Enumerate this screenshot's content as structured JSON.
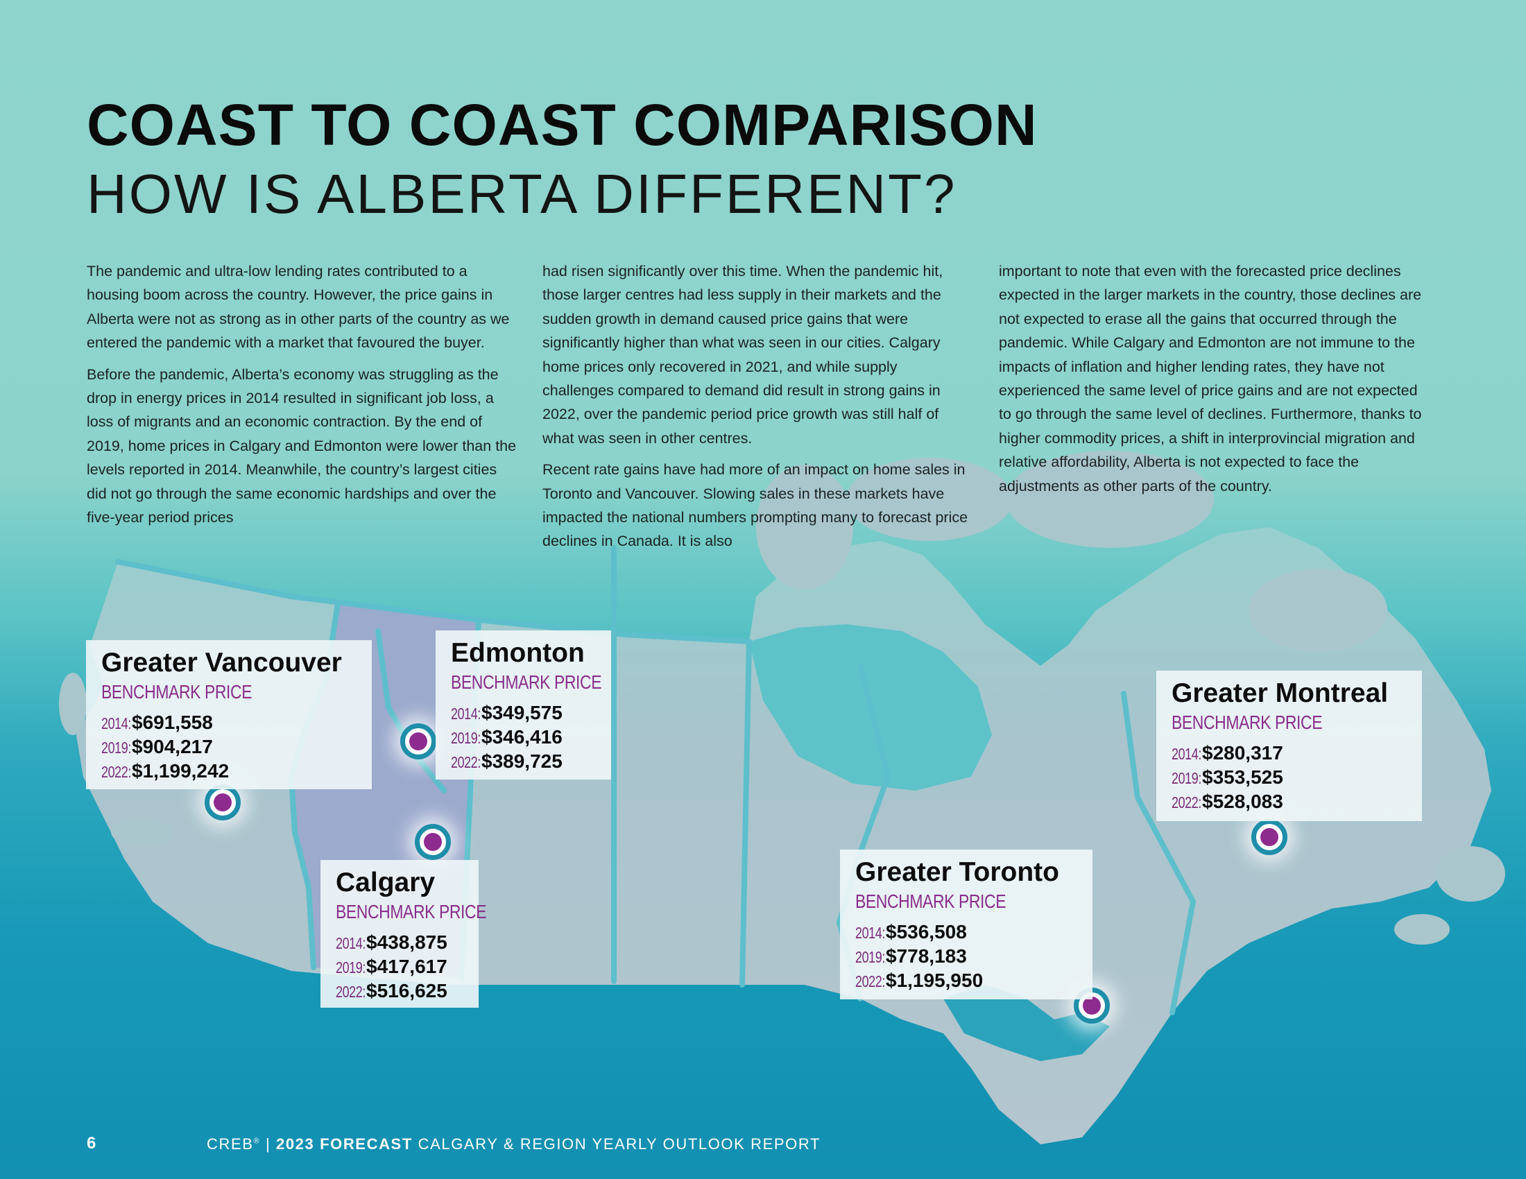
{
  "header": {
    "title": "COAST TO COAST COMPARISON",
    "subtitle": "HOW IS ALBERTA DIFFERENT?"
  },
  "body": {
    "col1_p1": "The pandemic and ultra-low lending rates contributed to a housing boom across the country. However, the price gains in Alberta were not as strong as in other parts of the country as we entered the pandemic with a market that favoured the buyer.",
    "col1_p2": "Before the pandemic, Alberta’s economy was struggling as the drop in energy prices in 2014 resulted in significant job loss, a loss of migrants and an economic contraction. By the end of 2019, home prices in Calgary and Edmonton were lower than the levels reported in 2014. Meanwhile, the country’s largest cities did not go through the same economic hardships and over the five-year period prices",
    "col2_p1": "had risen significantly over this time. When the pandemic hit, those larger centres had less supply in their markets and the sudden growth in demand caused price gains that were significantly higher than what was seen in our cities. Calgary home prices only recovered in 2021, and while supply challenges compared to demand did result in strong gains in 2022, over the pandemic period price growth was still half of what was seen in other centres.",
    "col2_p2": "Recent rate gains have had more of an impact on home sales in Toronto and Vancouver.  Slowing sales in these markets have impacted the national numbers prompting many to forecast price declines in Canada. It is also",
    "col3_p1": "important to note that even with the forecasted price declines expected in the larger markets in the country, those declines are not expected to erase all the gains that occurred through the pandemic. While Calgary and Edmonton are not immune to the impacts of inflation and higher lending rates, they have not experienced the same level of price gains and are not expected to go through the same level of declines. Furthermore, thanks to higher commodity prices, a shift in interprovincial migration and relative affordability, Alberta is not expected to face the adjustments as other parts of the country."
  },
  "benchmark_label": "BENCHMARK PRICE",
  "cities": {
    "vancouver": {
      "name": "Greater Vancouver",
      "y2014": "2014:",
      "p2014": "$691,558",
      "y2019": "2019:",
      "p2019": "$904,217",
      "y2022": "2022:",
      "p2022": "$1,199,242"
    },
    "edmonton": {
      "name": "Edmonton",
      "y2014": "2014:",
      "p2014": "$349,575",
      "y2019": "2019:",
      "p2019": "$346,416",
      "y2022": "2022:",
      "p2022": "$389,725"
    },
    "calgary": {
      "name": "Calgary",
      "y2014": "2014:",
      "p2014": "$438,875",
      "y2019": "2019:",
      "p2019": "$417,617",
      "y2022": "2022:",
      "p2022": "$516,625"
    },
    "toronto": {
      "name": "Greater Toronto",
      "y2014": "2014:",
      "p2014": "$536,508",
      "y2019": "2019:",
      "p2019": "$778,183",
      "y2022": "2022:",
      "p2022": "$1,195,950"
    },
    "montreal": {
      "name": "Greater Montreal",
      "y2014": "2014:",
      "p2014": "$280,317",
      "y2019": "2019:",
      "p2019": "$353,525",
      "y2022": "2022:",
      "p2022": "$528,083"
    }
  },
  "footer": {
    "page_number": "6",
    "brand": "CREB",
    "registered": "®",
    "separator": "|",
    "forecast": "2023 FORECAST",
    "report": "CALGARY & REGION YEARLY OUTLOOK REPORT"
  },
  "colors": {
    "accent_purple": "#8e2b8f",
    "marker_ring": "#1e8ea9",
    "alberta_fill": "#9ba8cf",
    "land": "#a9bfc8",
    "borders": "#5bbfcc"
  }
}
